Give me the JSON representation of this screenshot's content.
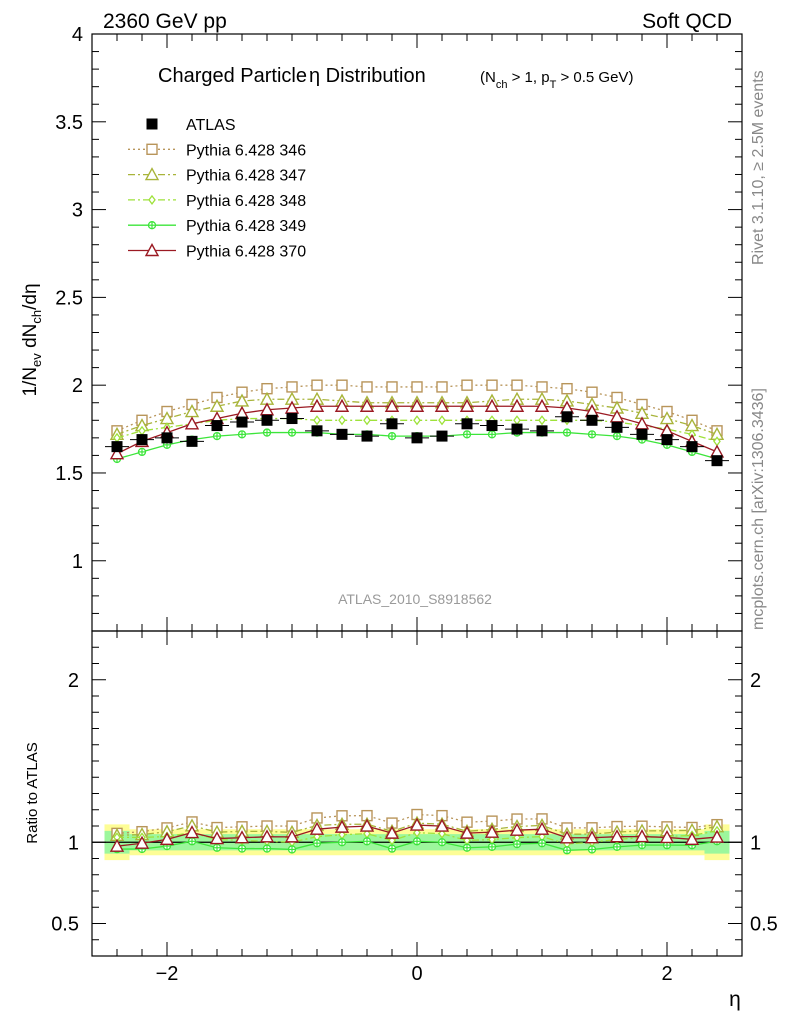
{
  "header": {
    "left": "2360 GeV pp",
    "right": "Soft QCD"
  },
  "side_labels": {
    "rivet": "Rivet 3.1.10, ≥ 2.5M events",
    "mcplots": "mcplots.cern.ch [arXiv:1306.3436]"
  },
  "chart_data": {
    "type": "scatter",
    "title_main": "Charged Particle",
    "title_eta": "η",
    "title_rest": " Distribution",
    "title_cond": "(N_ch > 1, p_T > 0.5 GeV)",
    "ylabel": "1/N_ev dN_ch/dη",
    "ratio_ylabel": "Ratio to ATLAS",
    "xlabel": "η",
    "watermark": "ATLAS_2010_S8918562",
    "xlim": [
      -2.6,
      2.6
    ],
    "ylim": [
      0.6,
      4.0
    ],
    "ratio_ylim": [
      0.3,
      2.3
    ],
    "main_yticks": [
      1,
      1.5,
      2,
      2.5,
      3,
      3.5,
      4
    ],
    "ratio_yticks": [
      0.5,
      1,
      2
    ],
    "xticks": [
      -2,
      0,
      2
    ],
    "x": [
      -2.4,
      -2.2,
      -2.0,
      -1.8,
      -1.6,
      -1.4,
      -1.2,
      -1.0,
      -0.8,
      -0.6,
      -0.4,
      -0.2,
      0.0,
      0.2,
      0.4,
      0.6,
      0.8,
      1.0,
      1.2,
      1.4,
      1.6,
      1.8,
      2.0,
      2.2,
      2.4
    ],
    "data": {
      "name": "ATLAS",
      "color": "#000000",
      "values": [
        1.65,
        1.69,
        1.7,
        1.68,
        1.77,
        1.79,
        1.8,
        1.81,
        1.74,
        1.72,
        1.71,
        1.78,
        1.7,
        1.71,
        1.78,
        1.77,
        1.75,
        1.74,
        1.82,
        1.8,
        1.76,
        1.72,
        1.69,
        1.65,
        1.57
      ],
      "band_inner_rel": [
        0.07,
        0.05,
        0.05,
        0.05,
        0.05,
        0.05,
        0.05,
        0.05,
        0.05,
        0.05,
        0.05,
        0.05,
        0.05,
        0.05,
        0.05,
        0.05,
        0.05,
        0.05,
        0.05,
        0.05,
        0.05,
        0.05,
        0.05,
        0.05,
        0.07
      ],
      "band_outer_rel": [
        0.11,
        0.08,
        0.08,
        0.08,
        0.08,
        0.08,
        0.08,
        0.08,
        0.08,
        0.08,
        0.08,
        0.08,
        0.08,
        0.08,
        0.08,
        0.08,
        0.08,
        0.08,
        0.08,
        0.08,
        0.08,
        0.08,
        0.08,
        0.08,
        0.11
      ]
    },
    "series": [
      {
        "name": "Pythia 6.428 346",
        "color": "#b8955a",
        "dash": "2,3",
        "marker": "square",
        "values": [
          1.74,
          1.8,
          1.85,
          1.89,
          1.93,
          1.96,
          1.98,
          1.99,
          2.0,
          2.0,
          1.99,
          1.99,
          1.99,
          1.99,
          2.0,
          2.0,
          2.0,
          1.99,
          1.98,
          1.96,
          1.93,
          1.89,
          1.85,
          1.8,
          1.74
        ]
      },
      {
        "name": "Pythia 6.428 347",
        "color": "#a8b43a",
        "dash": "7,3,2,3",
        "marker": "triangle",
        "values": [
          1.72,
          1.77,
          1.81,
          1.85,
          1.88,
          1.91,
          1.92,
          1.92,
          1.92,
          1.91,
          1.9,
          1.9,
          1.9,
          1.9,
          1.9,
          1.91,
          1.92,
          1.92,
          1.91,
          1.89,
          1.87,
          1.84,
          1.81,
          1.77,
          1.72
        ]
      },
      {
        "name": "Pythia 6.428 348",
        "color": "#9ee23a",
        "dash": "7,3,2,3",
        "marker": "diamond",
        "values": [
          1.7,
          1.74,
          1.76,
          1.78,
          1.8,
          1.81,
          1.81,
          1.81,
          1.8,
          1.8,
          1.8,
          1.8,
          1.8,
          1.8,
          1.8,
          1.8,
          1.8,
          1.8,
          1.8,
          1.8,
          1.79,
          1.77,
          1.75,
          1.72,
          1.68
        ]
      },
      {
        "name": "Pythia 6.428 349",
        "color": "#3ce53a",
        "dash": "",
        "marker": "cross",
        "values": [
          1.58,
          1.62,
          1.66,
          1.69,
          1.71,
          1.72,
          1.73,
          1.73,
          1.73,
          1.72,
          1.72,
          1.71,
          1.71,
          1.71,
          1.72,
          1.72,
          1.73,
          1.73,
          1.73,
          1.72,
          1.71,
          1.69,
          1.66,
          1.62,
          1.58
        ]
      },
      {
        "name": "Pythia 6.428 370",
        "color": "#9b1a23",
        "dash": "",
        "marker": "triangle",
        "values": [
          1.61,
          1.68,
          1.73,
          1.78,
          1.81,
          1.84,
          1.86,
          1.87,
          1.88,
          1.88,
          1.88,
          1.88,
          1.88,
          1.88,
          1.88,
          1.88,
          1.88,
          1.88,
          1.87,
          1.85,
          1.82,
          1.78,
          1.74,
          1.68,
          1.62
        ]
      }
    ]
  }
}
